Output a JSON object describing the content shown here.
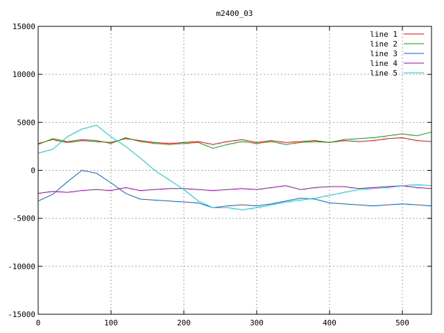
{
  "chart_data": {
    "type": "line",
    "title": "m2400_03",
    "xlabel": "",
    "ylabel": "",
    "xlim": [
      0,
      540
    ],
    "ylim": [
      -15000,
      15000
    ],
    "xticks": [
      0,
      100,
      200,
      300,
      400,
      500
    ],
    "yticks": [
      -15000,
      -10000,
      -5000,
      0,
      5000,
      10000,
      15000
    ],
    "grid": true,
    "legend_position": "top-right",
    "x": [
      0,
      20,
      40,
      60,
      80,
      100,
      120,
      140,
      160,
      180,
      200,
      220,
      240,
      260,
      280,
      300,
      320,
      340,
      360,
      380,
      400,
      420,
      440,
      460,
      480,
      500,
      520,
      540
    ],
    "series": [
      {
        "name": "line 1",
        "color": "#ff0000",
        "values": [
          2800,
          3200,
          2900,
          3100,
          3000,
          2900,
          3300,
          3100,
          2900,
          2800,
          2900,
          3000,
          2700,
          3000,
          3200,
          2900,
          3100,
          2900,
          3000,
          3100,
          2900,
          3100,
          3000,
          3100,
          3300,
          3400,
          3100,
          3000
        ]
      },
      {
        "name": "line 2",
        "color": "#00a000",
        "values": [
          2700,
          3300,
          3000,
          3200,
          3100,
          2800,
          3400,
          3000,
          2800,
          2700,
          2800,
          2900,
          2300,
          2700,
          3000,
          2800,
          3000,
          2700,
          2900,
          3000,
          2900,
          3200,
          3300,
          3400,
          3600,
          3800,
          3600,
          4000
        ]
      },
      {
        "name": "line 3",
        "color": "#0060e0",
        "values": [
          -3200,
          -2500,
          -1200,
          0,
          -300,
          -1300,
          -2400,
          -3000,
          -3100,
          -3200,
          -3300,
          -3400,
          -3900,
          -3700,
          -3600,
          -3700,
          -3500,
          -3200,
          -2900,
          -3000,
          -3400,
          -3500,
          -3600,
          -3700,
          -3600,
          -3500,
          -3600,
          -3700
        ]
      },
      {
        "name": "line 4",
        "color": "#a000c0",
        "values": [
          -2400,
          -2200,
          -2300,
          -2100,
          -2000,
          -2100,
          -1800,
          -2100,
          -2000,
          -1900,
          -1900,
          -2000,
          -2100,
          -2000,
          -1900,
          -2000,
          -1800,
          -1600,
          -2000,
          -1800,
          -1700,
          -1700,
          -1900,
          -1800,
          -1700,
          -1600,
          -1800,
          -1900
        ]
      },
      {
        "name": "line 5",
        "color": "#00d0d0",
        "values": [
          1800,
          2200,
          3500,
          4300,
          4700,
          3500,
          2500,
          1300,
          0,
          -1000,
          -2000,
          -3200,
          -3900,
          -3900,
          -4100,
          -3900,
          -3600,
          -3300,
          -3100,
          -2900,
          -2600,
          -2300,
          -2000,
          -1900,
          -1800,
          -1600,
          -1500,
          -1600
        ]
      }
    ]
  }
}
